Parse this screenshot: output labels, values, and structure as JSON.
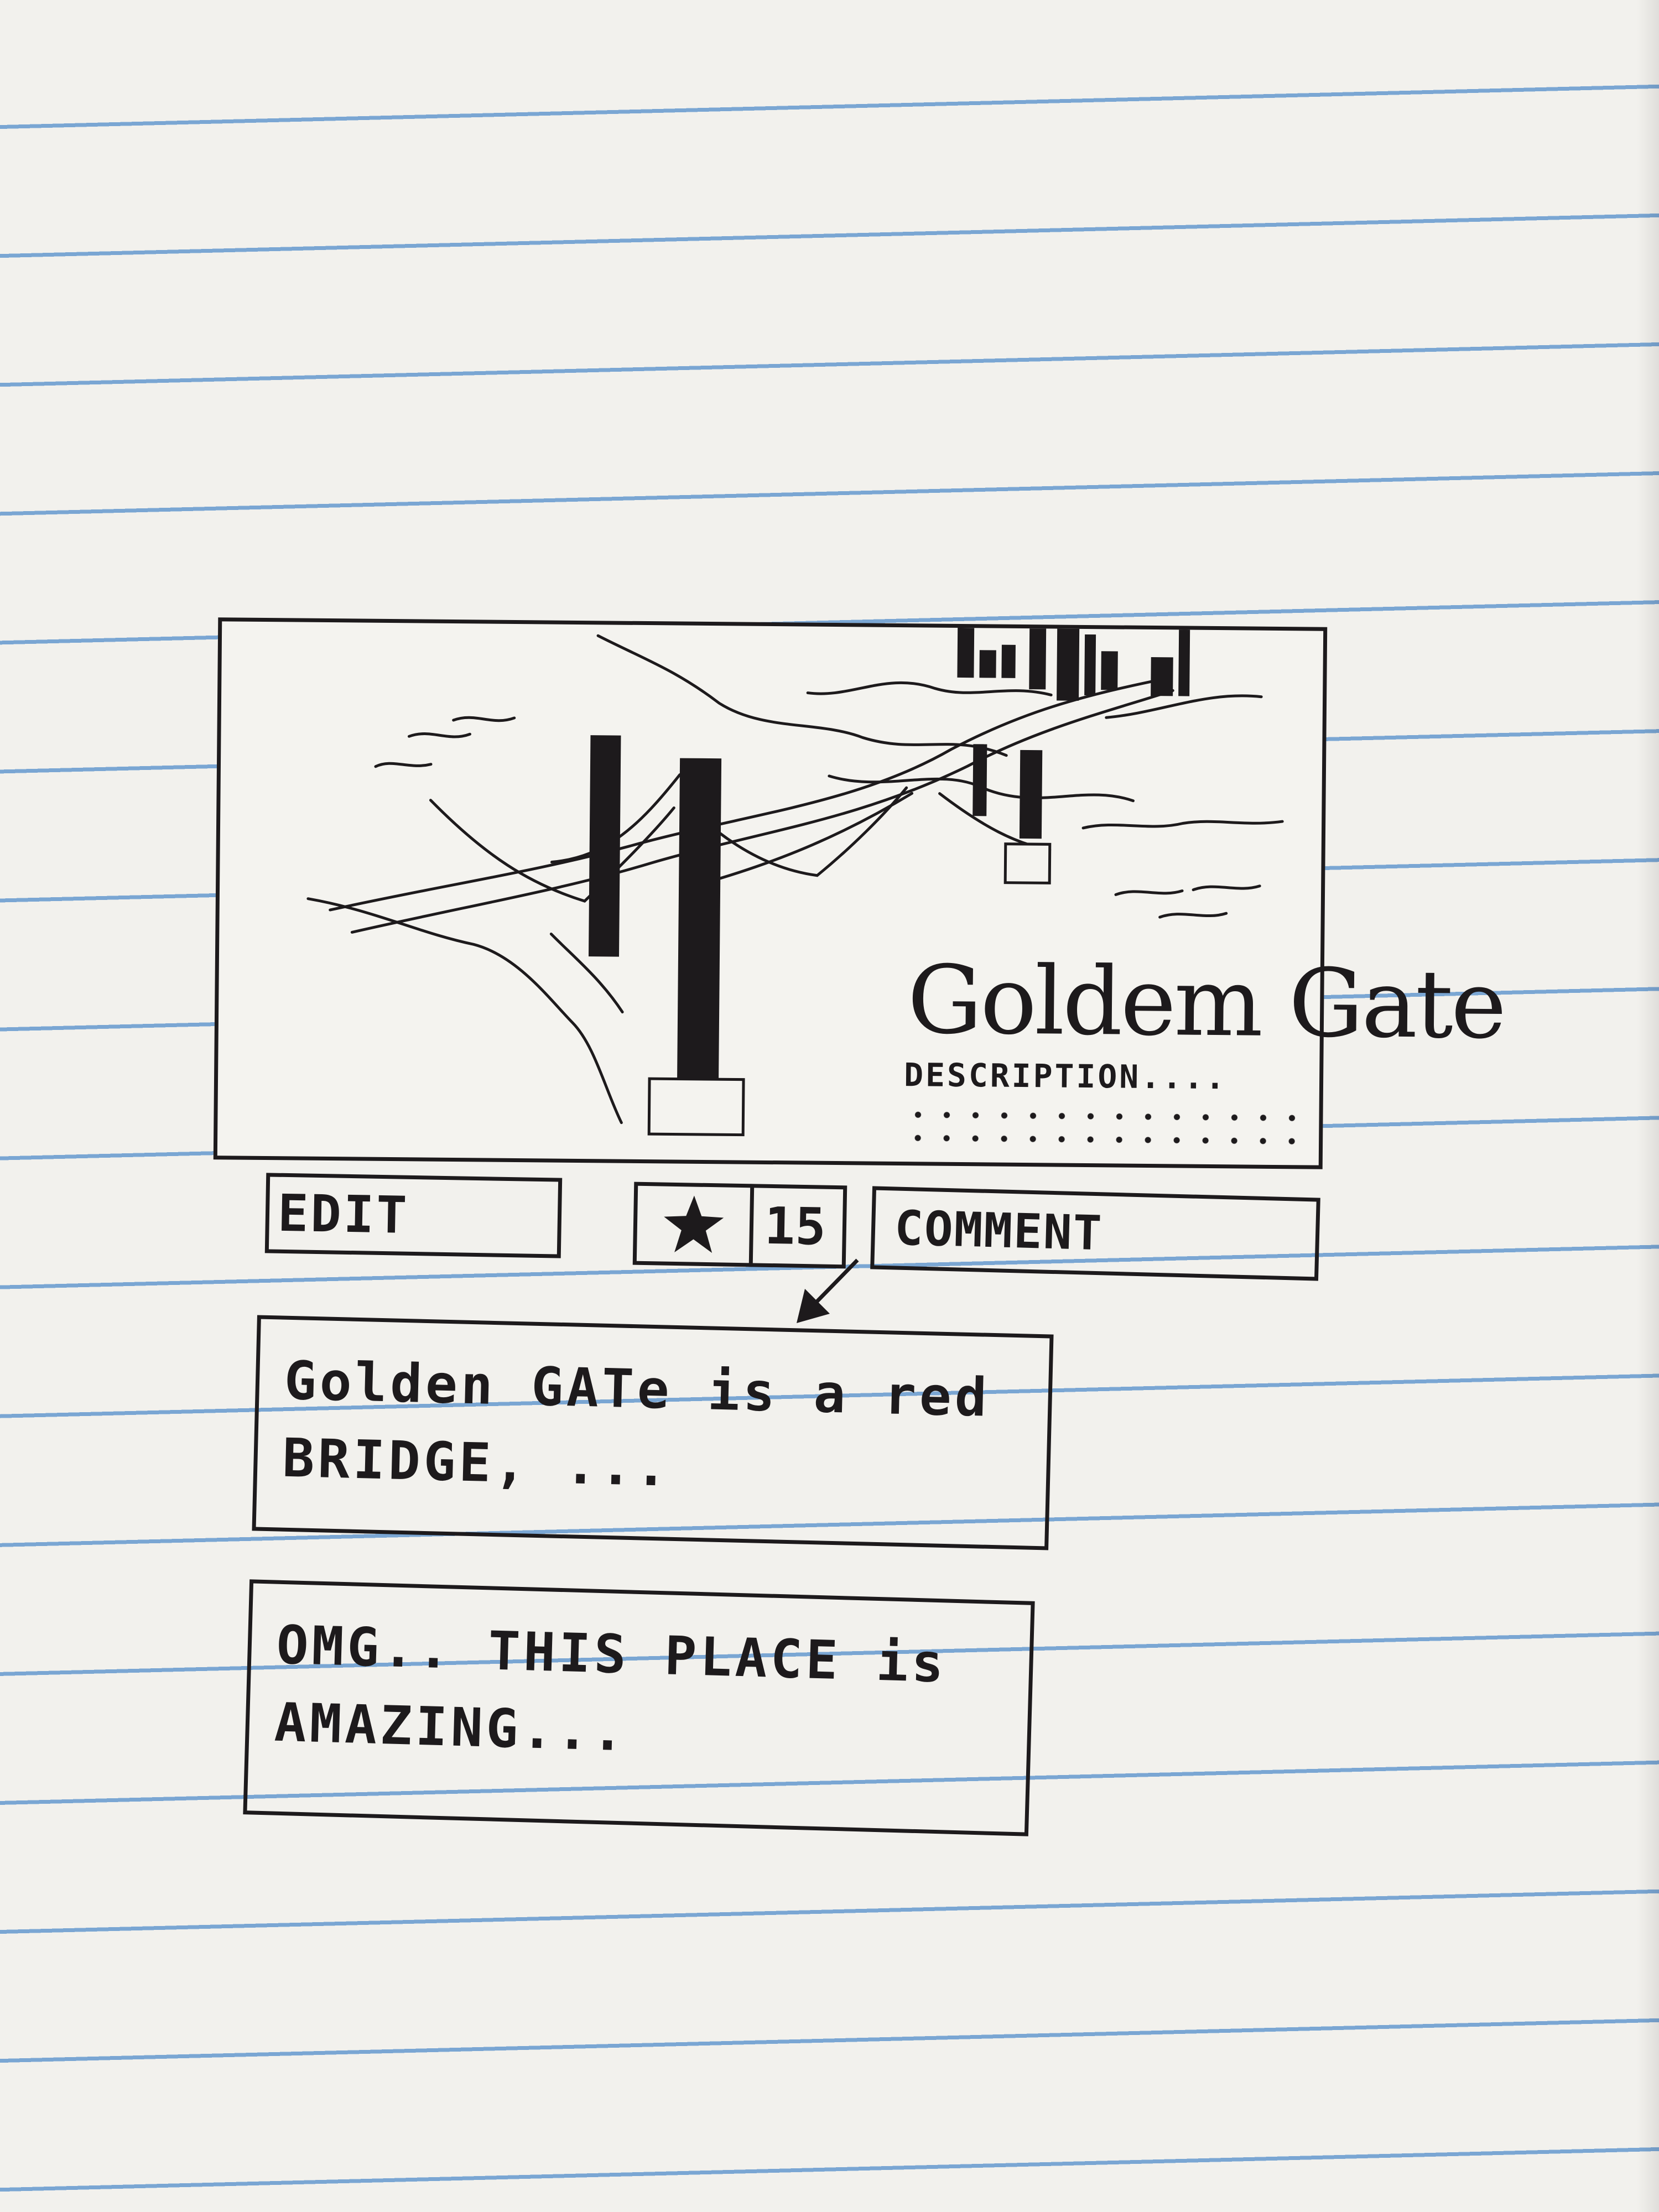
{
  "photo": {
    "title": "Goldem Gate",
    "description": "DESCRIPTION...."
  },
  "actions": {
    "edit_label": "EDIT",
    "star_icon": "star-icon",
    "star_count": "15",
    "comment_label": "COMMENT"
  },
  "comments": [
    {
      "text": "Golden GATe is a red BRIDGE, ..."
    },
    {
      "text": "OMG.. THIS PLACE is AMAZING..."
    }
  ],
  "colors": {
    "ink": "#1d1a1c",
    "paper": "#f2f1ed",
    "rule_line": "#7aa6d3"
  }
}
